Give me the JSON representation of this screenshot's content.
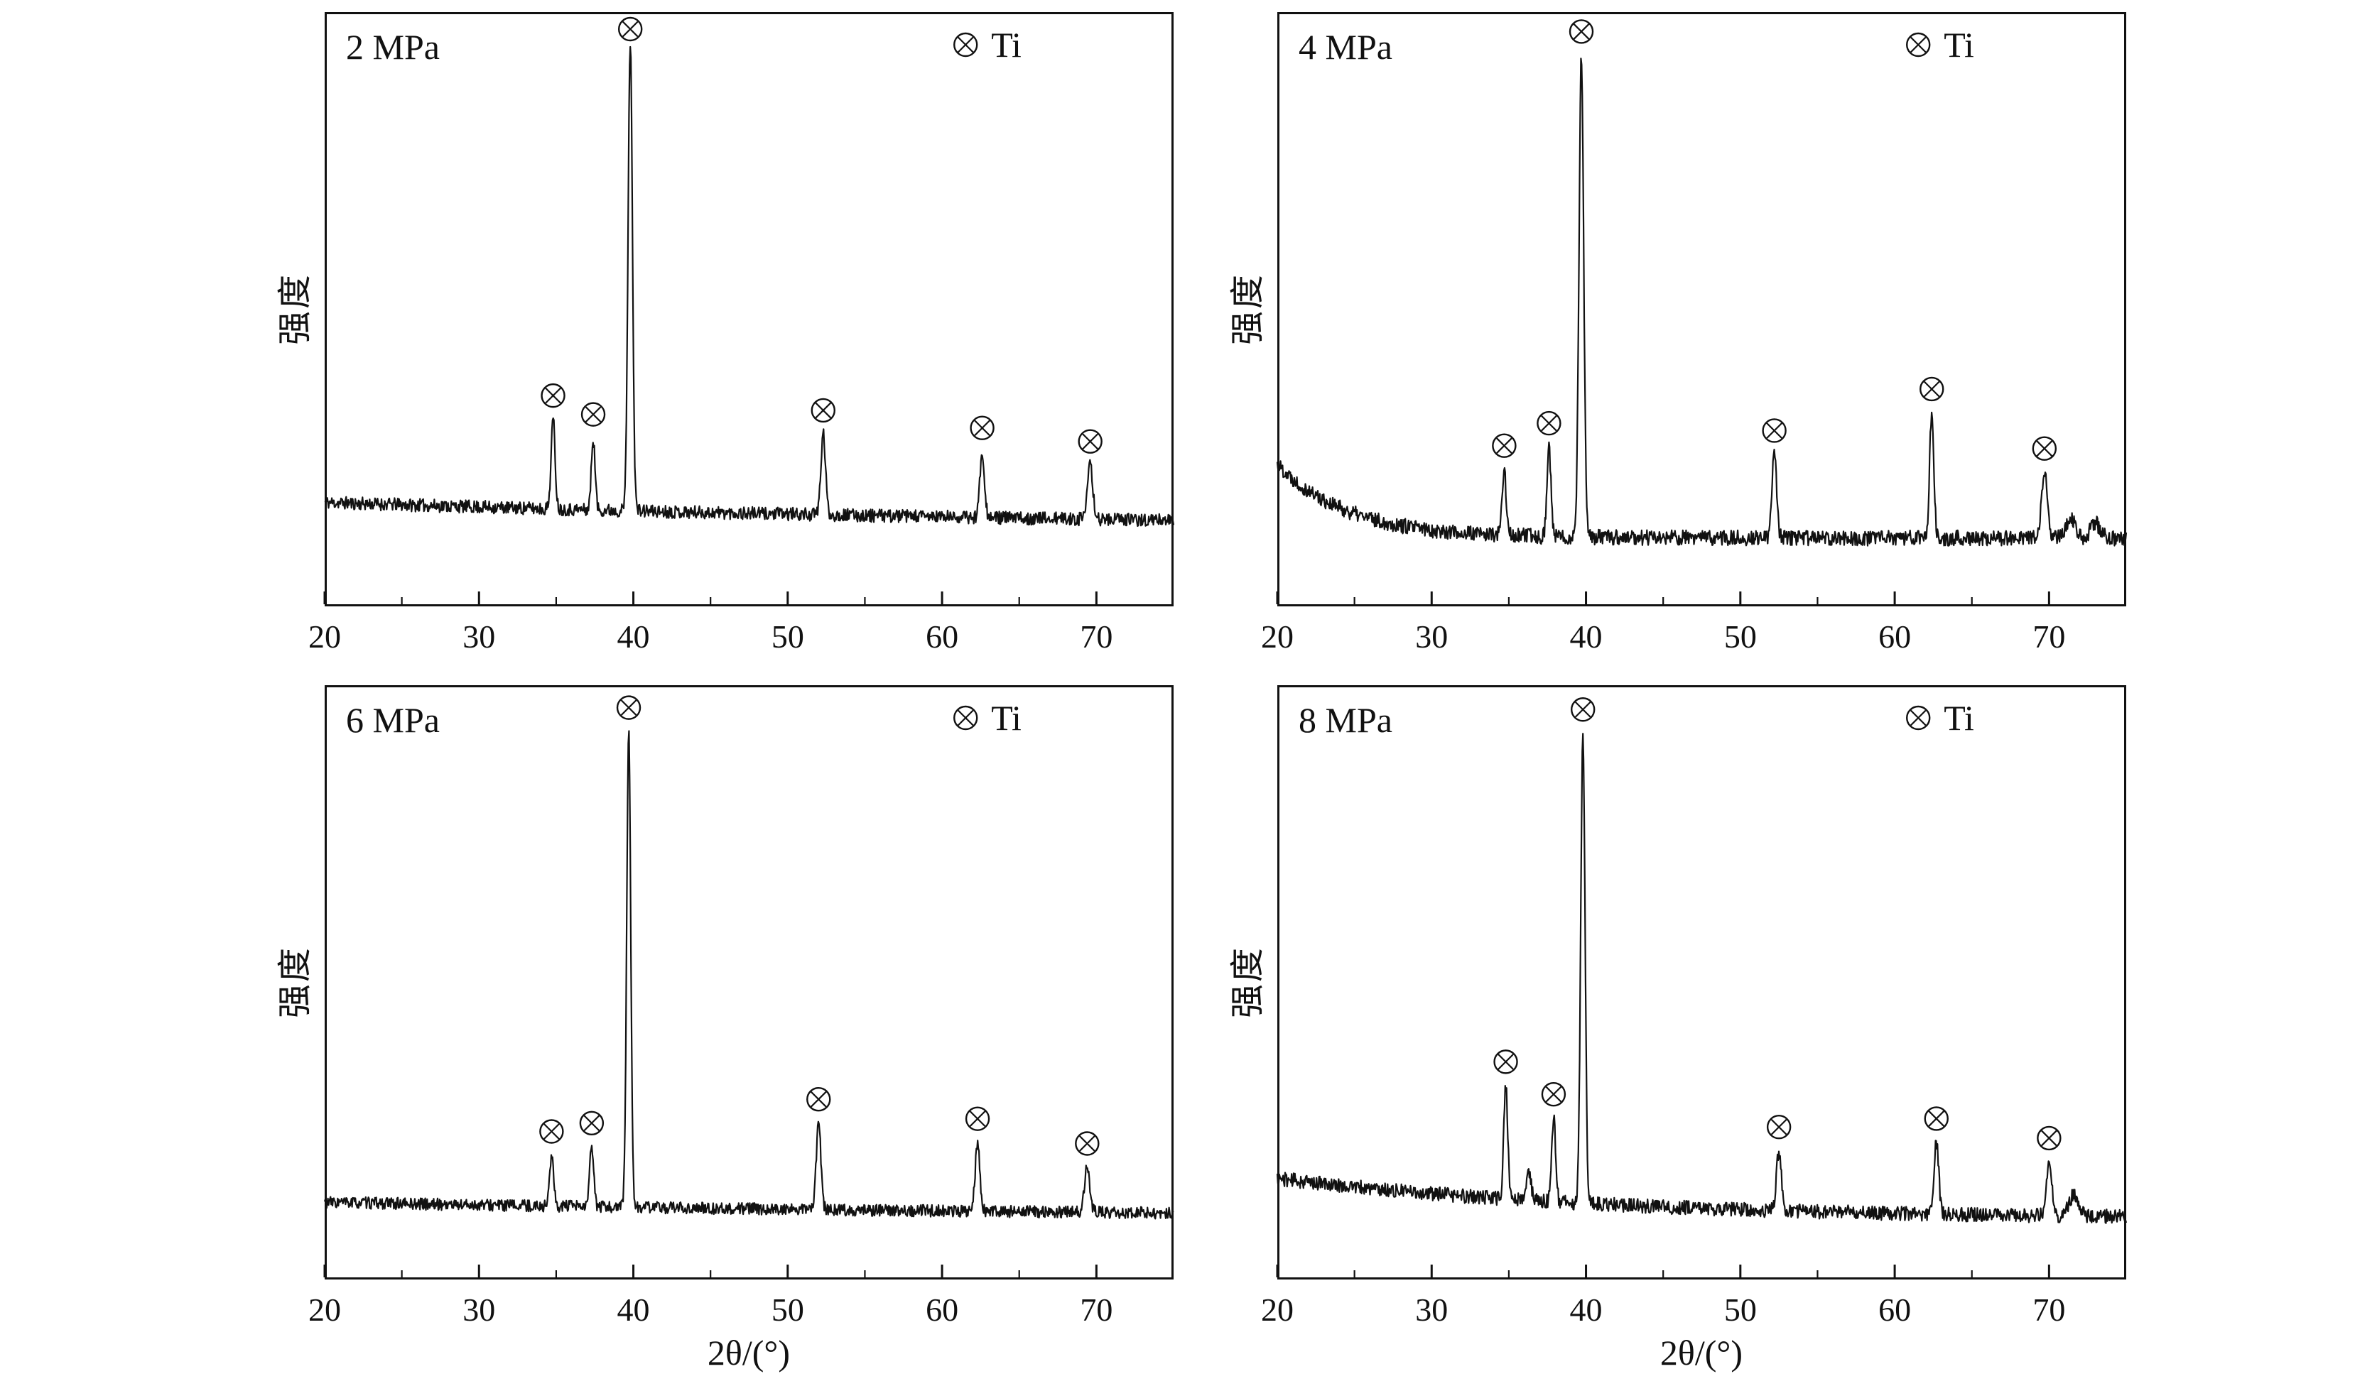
{
  "figure": {
    "background": "#ffffff",
    "line_color": "#111111",
    "legend_symbol": "circled-times-icon",
    "legend_label": "Ti"
  },
  "chart_data": [
    {
      "type": "line",
      "title": "2 MPa",
      "xlabel": "2θ/(°)",
      "ylabel": "强度",
      "xlim": [
        20,
        75
      ],
      "x_ticks": [
        20,
        30,
        40,
        50,
        60,
        70
      ],
      "legend": [
        "Ti"
      ],
      "legend_label": "Ti",
      "legend_position": "top-right",
      "grid": false,
      "seed": 11,
      "baseline": {
        "start": 0.175,
        "end": 0.125,
        "tau": 60,
        "noise": 0.011
      },
      "peaks": [
        {
          "x": 34.8,
          "height": 0.15,
          "sigma": 0.13,
          "phase": "Ti"
        },
        {
          "x": 37.4,
          "height": 0.12,
          "sigma": 0.12,
          "phase": "Ti"
        },
        {
          "x": 39.8,
          "height": 0.79,
          "sigma": 0.14,
          "phase": "Ti"
        },
        {
          "x": 52.3,
          "height": 0.135,
          "sigma": 0.15,
          "phase": "Ti"
        },
        {
          "x": 62.6,
          "height": 0.11,
          "sigma": 0.15,
          "phase": "Ti"
        },
        {
          "x": 69.6,
          "height": 0.09,
          "sigma": 0.17,
          "phase": "Ti"
        }
      ]
    },
    {
      "type": "line",
      "title": "4 MPa",
      "xlabel": "2θ/(°)",
      "ylabel": "强度",
      "xlim": [
        20,
        75
      ],
      "x_ticks": [
        20,
        30,
        40,
        50,
        60,
        70
      ],
      "legend": [
        "Ti"
      ],
      "legend_label": "Ti",
      "legend_position": "top-right",
      "grid": false,
      "seed": 22,
      "baseline": {
        "start": 0.24,
        "end": 0.115,
        "tau": 4.5,
        "noise": 0.013
      },
      "peaks": [
        {
          "x": 34.7,
          "height": 0.11,
          "sigma": 0.13,
          "phase": "Ti"
        },
        {
          "x": 37.6,
          "height": 0.15,
          "sigma": 0.13,
          "phase": "Ti"
        },
        {
          "x": 39.7,
          "height": 0.81,
          "sigma": 0.15,
          "phase": "Ti"
        },
        {
          "x": 52.2,
          "height": 0.14,
          "sigma": 0.15,
          "phase": "Ti"
        },
        {
          "x": 62.4,
          "height": 0.21,
          "sigma": 0.14,
          "phase": "Ti"
        },
        {
          "x": 69.7,
          "height": 0.11,
          "sigma": 0.18,
          "phase": "Ti"
        },
        {
          "x": 71.4,
          "height": 0.035,
          "sigma": 0.3,
          "phase": ""
        },
        {
          "x": 73.0,
          "height": 0.025,
          "sigma": 0.3,
          "phase": ""
        }
      ]
    },
    {
      "type": "line",
      "title": "6 MPa",
      "xlabel": "2θ/(°)",
      "ylabel": "强度",
      "xlim": [
        20,
        75
      ],
      "x_ticks": [
        20,
        30,
        40,
        50,
        60,
        70
      ],
      "legend": [
        "Ti"
      ],
      "legend_label": "Ti",
      "legend_position": "top-right",
      "grid": false,
      "seed": 33,
      "baseline": {
        "start": 0.13,
        "end": 0.1,
        "tau": 60,
        "noise": 0.01
      },
      "peaks": [
        {
          "x": 34.7,
          "height": 0.085,
          "sigma": 0.13,
          "phase": "Ti"
        },
        {
          "x": 37.3,
          "height": 0.1,
          "sigma": 0.13,
          "phase": "Ti"
        },
        {
          "x": 39.7,
          "height": 0.8,
          "sigma": 0.13,
          "phase": "Ti"
        },
        {
          "x": 52.0,
          "height": 0.145,
          "sigma": 0.15,
          "phase": "Ti"
        },
        {
          "x": 62.3,
          "height": 0.115,
          "sigma": 0.15,
          "phase": "Ti"
        },
        {
          "x": 69.4,
          "height": 0.075,
          "sigma": 0.17,
          "phase": "Ti"
        }
      ]
    },
    {
      "type": "line",
      "title": "8 MPa",
      "xlabel": "2θ/(°)",
      "ylabel": "强度",
      "xlim": [
        20,
        75
      ],
      "x_ticks": [
        20,
        30,
        40,
        50,
        60,
        70
      ],
      "legend": [
        "Ti"
      ],
      "legend_label": "Ti",
      "legend_position": "top-right",
      "grid": false,
      "seed": 44,
      "baseline": {
        "start": 0.17,
        "end": 0.1,
        "tau": 22,
        "noise": 0.012
      },
      "peaks": [
        {
          "x": 34.8,
          "height": 0.19,
          "sigma": 0.13,
          "phase": "Ti"
        },
        {
          "x": 36.3,
          "height": 0.05,
          "sigma": 0.14,
          "phase": ""
        },
        {
          "x": 37.9,
          "height": 0.14,
          "sigma": 0.13,
          "phase": "Ti"
        },
        {
          "x": 39.8,
          "height": 0.79,
          "sigma": 0.14,
          "phase": "Ti"
        },
        {
          "x": 52.5,
          "height": 0.1,
          "sigma": 0.16,
          "phase": "Ti"
        },
        {
          "x": 62.7,
          "height": 0.12,
          "sigma": 0.15,
          "phase": "Ti"
        },
        {
          "x": 70.0,
          "height": 0.09,
          "sigma": 0.18,
          "phase": "Ti"
        },
        {
          "x": 71.6,
          "height": 0.035,
          "sigma": 0.3,
          "phase": ""
        }
      ]
    }
  ]
}
